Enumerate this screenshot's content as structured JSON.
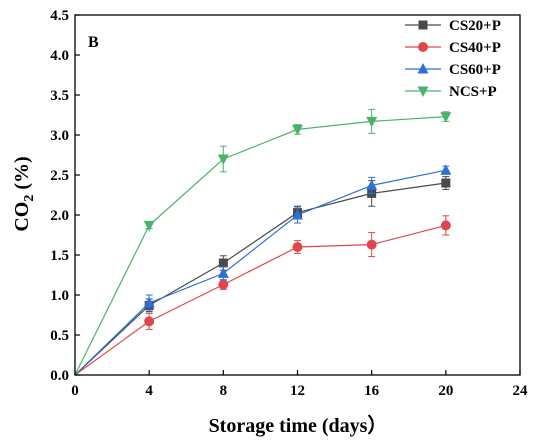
{
  "chart_data": {
    "type": "line",
    "panel_label": "B",
    "xlabel": "Storage time (days）",
    "ylabel_main": "CO",
    "ylabel_sub": "2",
    "ylabel_unit": " (%)",
    "xlim": [
      0,
      24
    ],
    "ylim": [
      0,
      4.5
    ],
    "xticks": [
      "0",
      "4",
      "8",
      "12",
      "16",
      "20",
      "24"
    ],
    "yticks": [
      "0.0",
      "0.5",
      "1.0",
      "1.5",
      "2.0",
      "2.5",
      "3.0",
      "3.5",
      "4.0",
      "4.5"
    ],
    "grid": false,
    "legend_position": "top-right",
    "x": [
      0,
      4,
      8,
      12,
      16,
      20
    ],
    "series": [
      {
        "name": "CS20+P",
        "color": "#4a4a4a",
        "marker": "square",
        "values": [
          0,
          0.87,
          1.4,
          2.03,
          2.27,
          2.4
        ],
        "errors": [
          0,
          0.08,
          0.09,
          0.08,
          0.16,
          0.08
        ]
      },
      {
        "name": "CS40+P",
        "color": "#e0474c",
        "marker": "circle",
        "values": [
          0,
          0.67,
          1.13,
          1.6,
          1.63,
          1.87
        ],
        "errors": [
          0,
          0.1,
          0.06,
          0.08,
          0.15,
          0.12
        ]
      },
      {
        "name": "CS60+P",
        "color": "#2f6fd8",
        "marker": "triangle-up",
        "values": [
          0,
          0.9,
          1.27,
          2.0,
          2.37,
          2.56
        ],
        "errors": [
          0,
          0.1,
          0.08,
          0.1,
          0.1,
          0.05
        ]
      },
      {
        "name": "NCS+P",
        "color": "#4bb36b",
        "marker": "triangle-down",
        "values": [
          0,
          1.87,
          2.7,
          3.07,
          3.17,
          3.23
        ],
        "errors": [
          0,
          0.04,
          0.16,
          0.06,
          0.15,
          0.06
        ]
      }
    ]
  }
}
